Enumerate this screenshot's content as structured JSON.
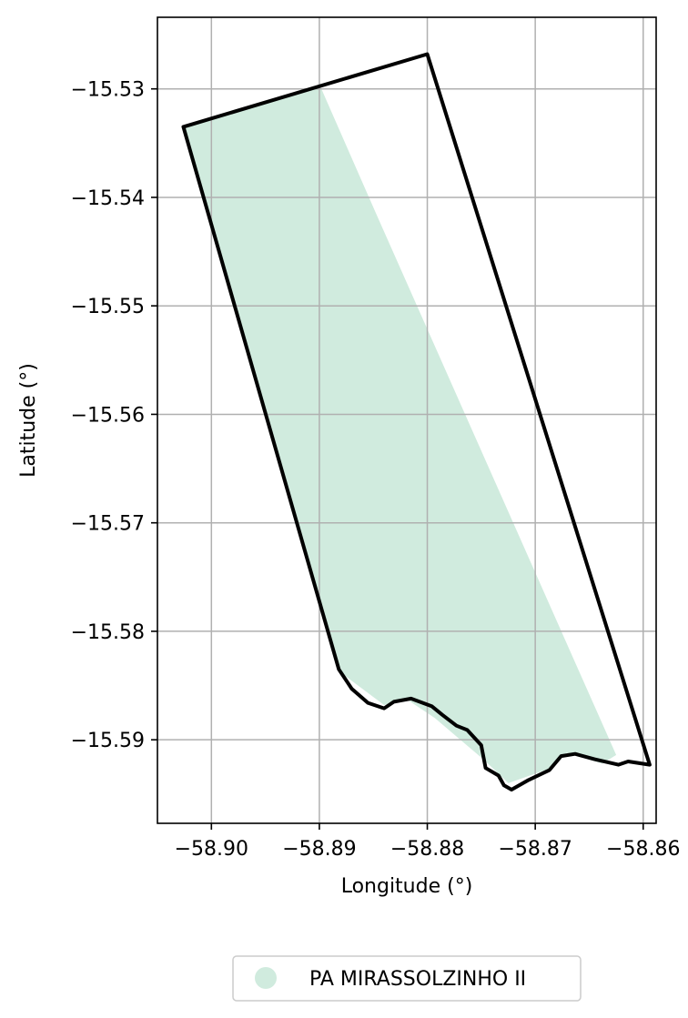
{
  "map": {
    "xlabel": "Longitude (°)",
    "ylabel": "Latitude (°)",
    "x_range": [
      -58.905,
      -58.8588
    ],
    "y_range": [
      -15.5977,
      -15.5234
    ],
    "x_ticks": [
      {
        "value": -58.9,
        "label": "−58.90"
      },
      {
        "value": -58.89,
        "label": "−58.89"
      },
      {
        "value": -58.88,
        "label": "−58.88"
      },
      {
        "value": -58.87,
        "label": "−58.87"
      },
      {
        "value": -58.86,
        "label": "−58.86"
      }
    ],
    "y_ticks": [
      {
        "value": -15.53,
        "label": "−15.53"
      },
      {
        "value": -15.54,
        "label": "−15.54"
      },
      {
        "value": -15.55,
        "label": "−15.55"
      },
      {
        "value": -15.56,
        "label": "−15.56"
      },
      {
        "value": -15.57,
        "label": "−15.57"
      },
      {
        "value": -15.58,
        "label": "−15.58"
      },
      {
        "value": -15.59,
        "label": "−15.59"
      }
    ],
    "grid": true,
    "legend": {
      "placement": "bottom-center",
      "entries": [
        {
          "label": "PA MIRASSOLZINHO II",
          "color": "#d0ebde",
          "marker": "circle"
        }
      ]
    },
    "fill_color": "#d0ebde",
    "outline_color": "#000000",
    "grid_color": "#b0b0b0",
    "filled_area": [
      [
        -58.9026,
        -15.5335
      ],
      [
        -58.8899,
        -15.5298
      ],
      [
        -58.8847,
        -15.5416
      ],
      [
        -58.8625,
        -15.5914
      ],
      [
        -58.8638,
        -15.5922
      ],
      [
        -58.8671,
        -15.5912
      ],
      [
        -58.8688,
        -15.5927
      ],
      [
        -58.8725,
        -15.594
      ],
      [
        -58.8747,
        -15.5919
      ],
      [
        -58.8793,
        -15.588
      ],
      [
        -58.882,
        -15.5862
      ],
      [
        -58.884,
        -15.5868
      ],
      [
        -58.8883,
        -15.5836
      ]
    ],
    "outline": [
      [
        -58.9026,
        -15.5335
      ],
      [
        -58.88,
        -15.5268
      ],
      [
        -58.8594,
        -15.5923
      ],
      [
        -58.8614,
        -15.592
      ],
      [
        -58.8623,
        -15.5923
      ],
      [
        -58.8645,
        -15.5918
      ],
      [
        -58.8663,
        -15.5913
      ],
      [
        -58.8676,
        -15.5915
      ],
      [
        -58.8687,
        -15.5928
      ],
      [
        -58.8706,
        -15.5937
      ],
      [
        -58.8722,
        -15.5946
      ],
      [
        -58.8729,
        -15.5942
      ],
      [
        -58.8734,
        -15.5933
      ],
      [
        -58.8746,
        -15.5926
      ],
      [
        -58.875,
        -15.5905
      ],
      [
        -58.8763,
        -15.5891
      ],
      [
        -58.8773,
        -15.5887
      ],
      [
        -58.8786,
        -15.5877
      ],
      [
        -58.8796,
        -15.5869
      ],
      [
        -58.8815,
        -15.5862
      ],
      [
        -58.8831,
        -15.5865
      ],
      [
        -58.884,
        -15.5871
      ],
      [
        -58.8855,
        -15.5866
      ],
      [
        -58.887,
        -15.5853
      ],
      [
        -58.8882,
        -15.5835
      ],
      [
        -58.9026,
        -15.5335
      ]
    ]
  }
}
